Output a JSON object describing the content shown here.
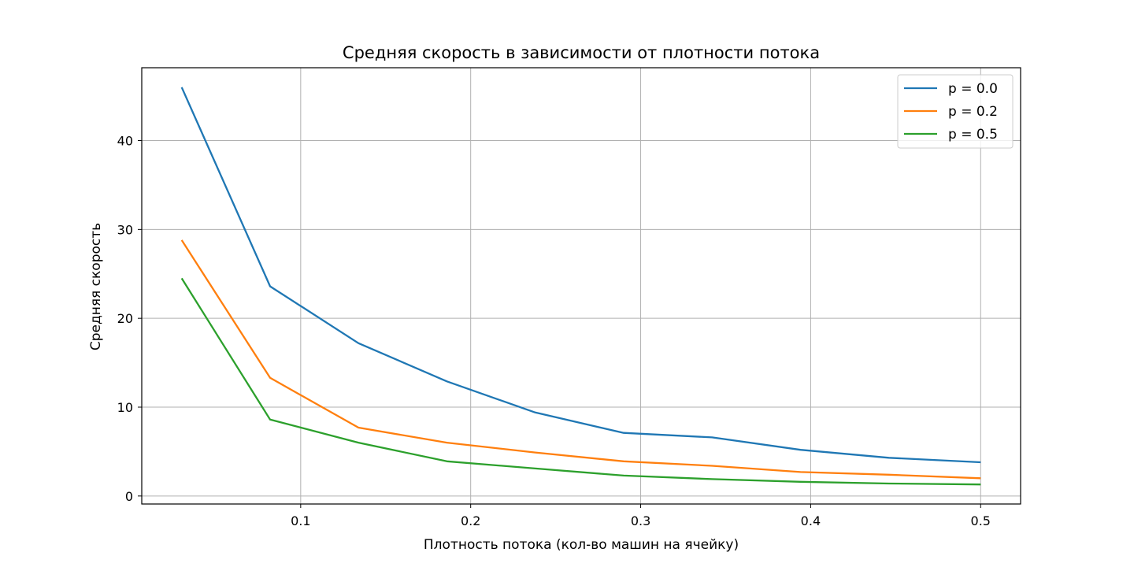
{
  "chart_data": {
    "type": "line",
    "title": "Средняя скорость в зависимости от плотности потока",
    "xlabel": "Плотность потока (кол-во машин на ячейку)",
    "ylabel": "Средняя скорость",
    "xlim": [
      0.0065,
      0.5235
    ],
    "ylim": [
      -0.9,
      48.2
    ],
    "xticks": [
      0.1,
      0.2,
      0.3,
      0.4,
      0.5
    ],
    "xtick_labels": [
      "0.1",
      "0.2",
      "0.3",
      "0.4",
      "0.5"
    ],
    "yticks": [
      0,
      10,
      20,
      30,
      40
    ],
    "ytick_labels": [
      "0",
      "10",
      "20",
      "30",
      "40"
    ],
    "grid": true,
    "legend_position": "top-right",
    "x": [
      0.03,
      0.082,
      0.134,
      0.186,
      0.238,
      0.29,
      0.342,
      0.394,
      0.446,
      0.5
    ],
    "series": [
      {
        "name": "p = 0.0",
        "color": "#1f77b4",
        "values": [
          46.0,
          23.6,
          17.2,
          12.9,
          9.4,
          7.1,
          6.6,
          5.2,
          4.3,
          3.8
        ]
      },
      {
        "name": "p = 0.2",
        "color": "#ff7f0e",
        "values": [
          28.8,
          13.3,
          7.7,
          6.0,
          4.9,
          3.9,
          3.4,
          2.7,
          2.4,
          2.0
        ]
      },
      {
        "name": "p = 0.5",
        "color": "#2ca02c",
        "values": [
          24.5,
          8.6,
          6.0,
          3.9,
          3.1,
          2.3,
          1.9,
          1.6,
          1.4,
          1.3
        ]
      }
    ]
  }
}
